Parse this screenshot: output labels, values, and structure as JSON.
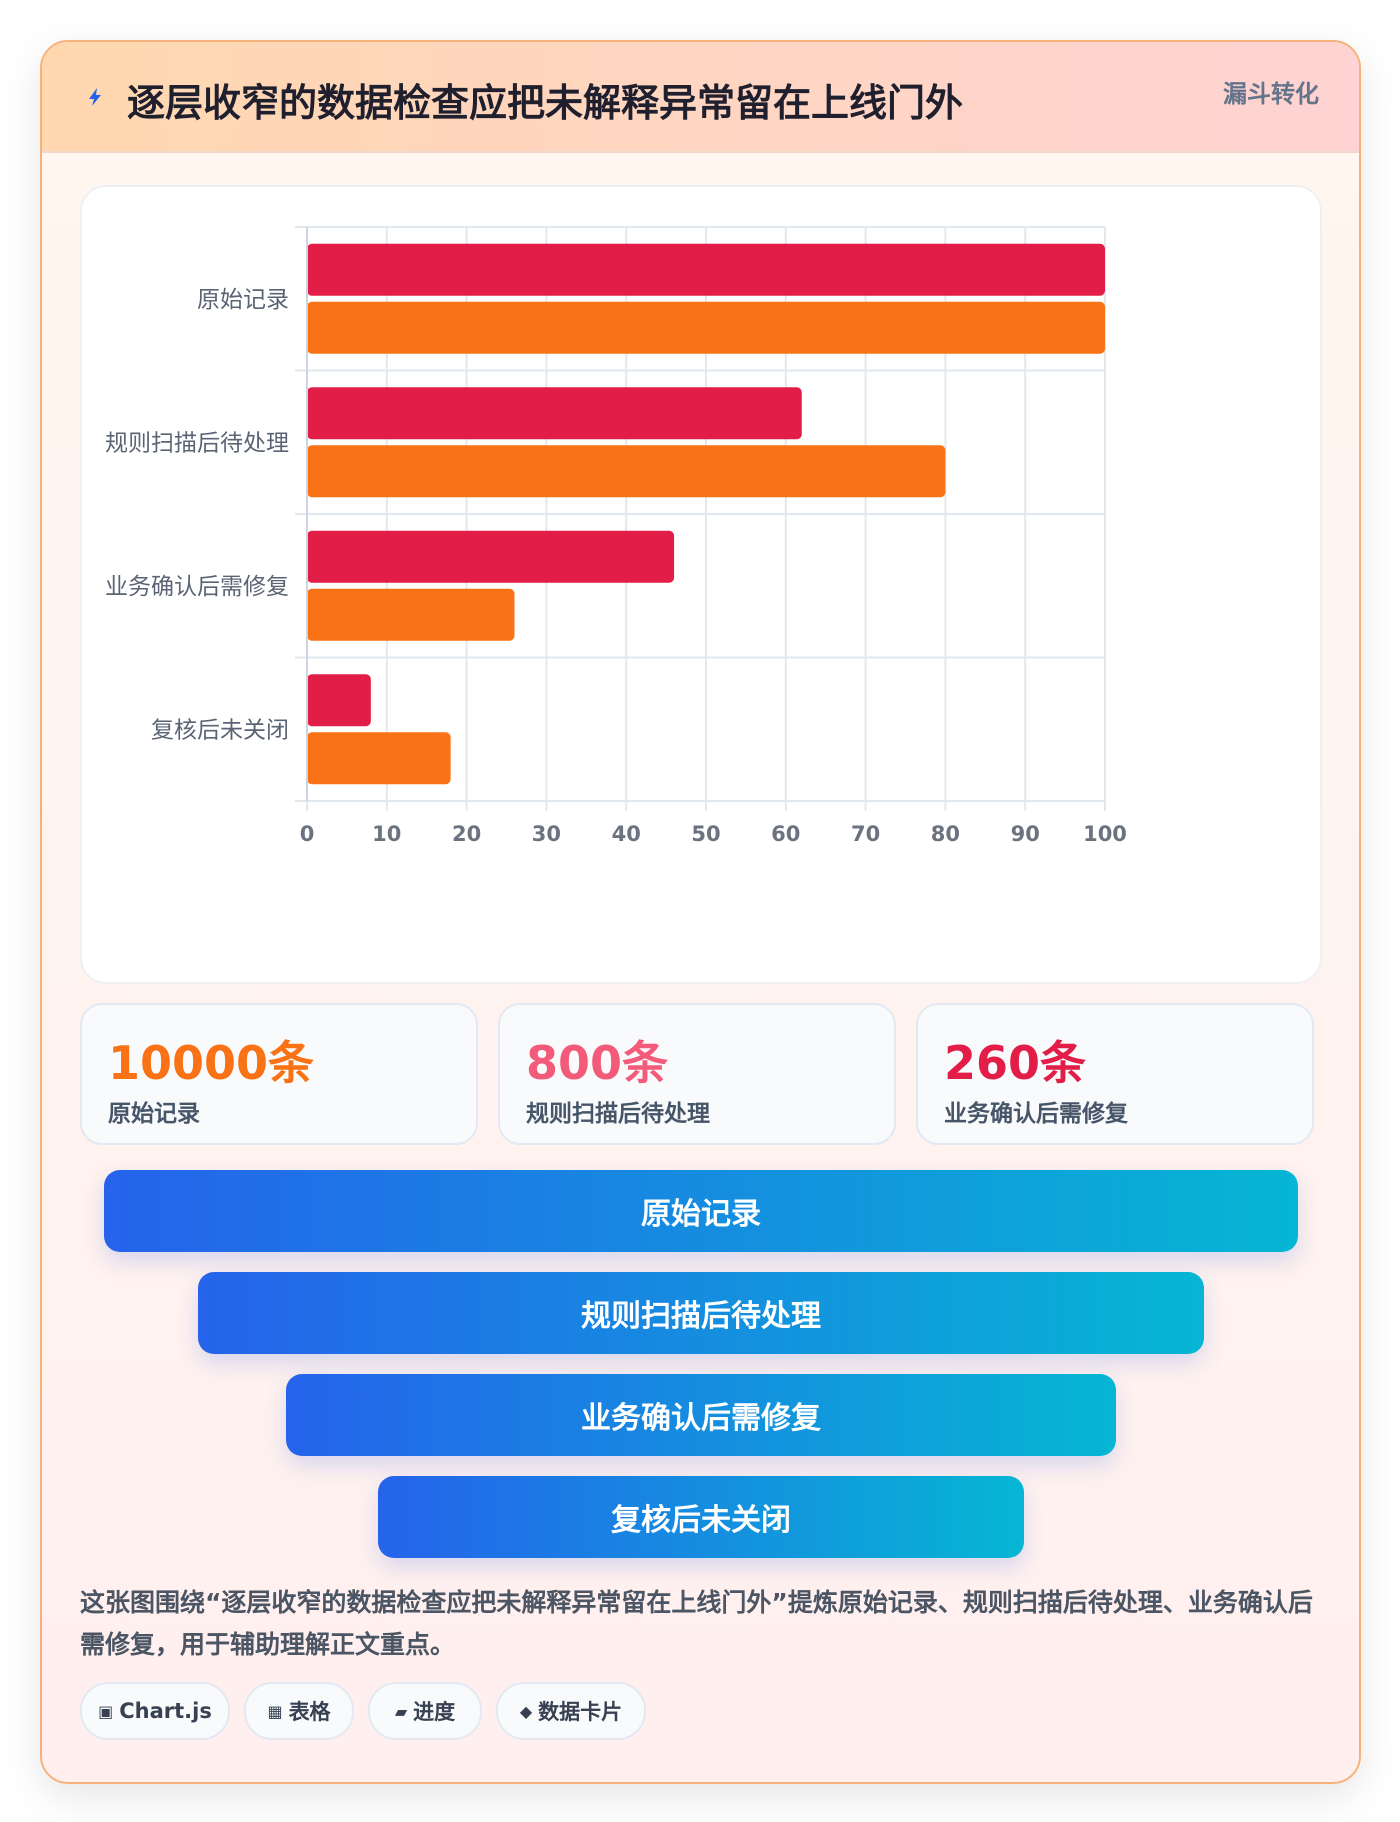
{
  "header": {
    "title": "逐层收窄的数据检查应把未解释异常留在上线门外",
    "tag": "漏斗转化"
  },
  "chart_data": {
    "type": "bar",
    "orientation": "horizontal",
    "categories": [
      "原始记录",
      "规则扫描后待处理",
      "业务确认后需修复",
      "复核后未关闭"
    ],
    "series": [
      {
        "color": "#e11d48",
        "values": [
          100,
          62,
          46,
          8
        ]
      },
      {
        "color": "#f97316",
        "values": [
          100,
          80,
          26,
          18
        ]
      }
    ],
    "xlim": [
      0,
      100
    ],
    "xticks": [
      0,
      10,
      20,
      30,
      40,
      50,
      60,
      70,
      80,
      90,
      100
    ],
    "grid": true
  },
  "stats": [
    {
      "value": "10000条",
      "label": "原始记录",
      "color": "#f97316"
    },
    {
      "value": "800条",
      "label": "规则扫描后待处理",
      "color": "#f25c7a"
    },
    {
      "value": "260条",
      "label": "业务确认后需修复",
      "color": "#e11d48"
    }
  ],
  "funnel": [
    "原始记录",
    "规则扫描后待处理",
    "业务确认后需修复",
    "复核后未关闭"
  ],
  "description": "这张图围绕“逐层收窄的数据检查应把未解释异常留在上线门外”提炼原始记录、规则扫描后待处理、业务确认后需修复，用于辅助理解正文重点。",
  "chips": [
    {
      "icon": "▣",
      "icon_name": "chart-icon",
      "label": "Chart.js"
    },
    {
      "icon": "▦",
      "icon_name": "table-icon",
      "label": "表格"
    },
    {
      "icon": "▰",
      "icon_name": "progress-icon",
      "label": "进度"
    },
    {
      "icon": "◆",
      "icon_name": "diamond-icon",
      "label": "数据卡片"
    }
  ]
}
